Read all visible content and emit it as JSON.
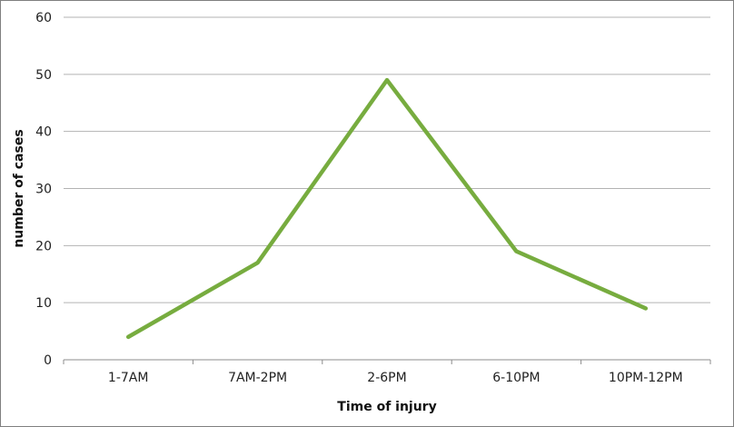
{
  "chart_data": {
    "type": "line",
    "title": "",
    "xlabel": "Time of injury",
    "ylabel": "number of cases",
    "categories": [
      "1-7AM",
      "7AM-2PM",
      "2-6PM",
      "6-10PM",
      "10PM-12PM"
    ],
    "series": [
      {
        "values": [
          4,
          17,
          49,
          19,
          9
        ],
        "color": "#77ac3f"
      }
    ],
    "ylim": [
      0,
      60
    ],
    "yticks": [
      0,
      10,
      20,
      30,
      40,
      50,
      60
    ],
    "grid": true,
    "legend": "none"
  }
}
